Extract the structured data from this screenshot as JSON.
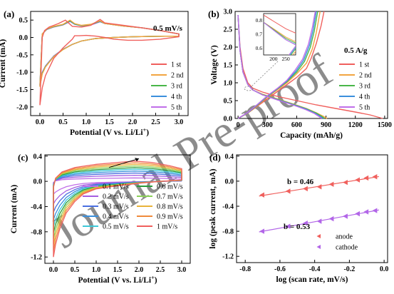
{
  "watermark": "Journal Pre-proof",
  "chart_data": [
    {
      "panel": "(a)",
      "type": "line",
      "title": "",
      "annotation": "0.5 mV/s",
      "xlabel": "Potential (V vs. Li/Li",
      "xlabel_sup": "+",
      "xlabel_end": ")",
      "ylabel": "Current (mA)",
      "xlim": [
        -0.2,
        3.2
      ],
      "ylim": [
        -2.25,
        0.75
      ],
      "xticks": [
        "0.0",
        "0.5",
        "1.0",
        "1.5",
        "2.0",
        "2.5",
        "3.0"
      ],
      "xtick_values": [
        0,
        0.5,
        1,
        1.5,
        2,
        2.5,
        3
      ],
      "yticks": [
        "0.5",
        "0.0",
        "-0.5",
        "-1.0",
        "-1.5",
        "-2.0"
      ],
      "ytick_values": [
        0.5,
        0,
        -0.5,
        -1,
        -1.5,
        -2
      ],
      "legend_position": "bottom-right",
      "series": [
        {
          "name": "1 st",
          "color": "#f0605d",
          "x": [
            0.0,
            0.05,
            0.12,
            0.3,
            0.5,
            0.7,
            0.75,
            0.85,
            1.0,
            1.2,
            1.4,
            1.6,
            1.9,
            2.2,
            2.6,
            3.0,
            3.0,
            2.6,
            2.2,
            1.8,
            1.4,
            1.3,
            1.1,
            0.9,
            0.7,
            0.55,
            0.4,
            0.3,
            0.2,
            0.1,
            0.05,
            0.0
          ],
          "y": [
            -1.95,
            -1.45,
            -1.1,
            -0.6,
            -0.3,
            -0.05,
            0.05,
            0.05,
            0.06,
            0.04,
            0.0,
            -0.05,
            -0.08,
            -0.08,
            -0.05,
            0.02,
            0.1,
            0.2,
            0.28,
            0.35,
            0.42,
            0.52,
            0.35,
            0.3,
            0.32,
            0.5,
            0.4,
            0.35,
            0.3,
            0.2,
            0.0,
            -1.95
          ]
        },
        {
          "name": "2 nd",
          "color": "#f2a541",
          "x": [
            0.0,
            0.05,
            0.12,
            0.3,
            0.5,
            0.7,
            0.9,
            1.2,
            1.6,
            2.0,
            2.4,
            3.0,
            3.0,
            2.6,
            2.2,
            1.8,
            1.4,
            1.3,
            1.1,
            0.9,
            0.75,
            0.65,
            0.5,
            0.3,
            0.15,
            0.05,
            0.0
          ],
          "y": [
            -1.42,
            -1.05,
            -0.85,
            -0.55,
            -0.35,
            -0.2,
            -0.1,
            -0.03,
            0.0,
            0.02,
            0.03,
            0.04,
            0.1,
            0.2,
            0.28,
            0.33,
            0.4,
            0.48,
            0.38,
            0.35,
            0.4,
            0.5,
            0.38,
            0.32,
            0.25,
            0.1,
            -1.42
          ]
        },
        {
          "name": "3 rd",
          "color": "#49b749",
          "x": [
            0.0,
            0.05,
            0.12,
            0.3,
            0.5,
            0.7,
            0.9,
            1.2,
            1.6,
            2.0,
            2.4,
            3.0,
            3.0,
            2.6,
            2.2,
            1.8,
            1.4,
            1.3,
            1.1,
            0.9,
            0.75,
            0.65,
            0.5,
            0.3,
            0.15,
            0.05,
            0.0
          ],
          "y": [
            -1.4,
            -1.03,
            -0.84,
            -0.55,
            -0.35,
            -0.2,
            -0.1,
            -0.03,
            0.0,
            0.02,
            0.03,
            0.04,
            0.1,
            0.2,
            0.28,
            0.33,
            0.4,
            0.47,
            0.37,
            0.34,
            0.39,
            0.48,
            0.37,
            0.31,
            0.24,
            0.1,
            -1.4
          ]
        },
        {
          "name": "4 th",
          "color": "#3b8fdc",
          "x": [
            0.0,
            0.05,
            0.12,
            0.3,
            0.5,
            0.7,
            0.9,
            1.2,
            1.6,
            2.0,
            2.4,
            3.0,
            3.0,
            2.6,
            2.2,
            1.8,
            1.4,
            1.3,
            1.1,
            0.9,
            0.75,
            0.65,
            0.5,
            0.3,
            0.15,
            0.05,
            0.0
          ],
          "y": [
            -1.38,
            -1.02,
            -0.83,
            -0.54,
            -0.34,
            -0.2,
            -0.1,
            -0.03,
            0.0,
            0.02,
            0.03,
            0.04,
            0.1,
            0.2,
            0.28,
            0.33,
            0.4,
            0.46,
            0.37,
            0.34,
            0.38,
            0.47,
            0.37,
            0.31,
            0.24,
            0.1,
            -1.38
          ]
        },
        {
          "name": "5 th",
          "color": "#c06ee8",
          "x": [
            0.0,
            0.05,
            0.12,
            0.3,
            0.5,
            0.7,
            0.9,
            1.2,
            1.6,
            2.0,
            2.4,
            3.0,
            3.0,
            2.6,
            2.2,
            1.8,
            1.4,
            1.3,
            1.1,
            0.9,
            0.75,
            0.65,
            0.5,
            0.3,
            0.15,
            0.05,
            0.0
          ],
          "y": [
            -1.36,
            -1.0,
            -0.82,
            -0.53,
            -0.34,
            -0.2,
            -0.1,
            -0.03,
            0.0,
            0.02,
            0.03,
            0.04,
            0.1,
            0.2,
            0.28,
            0.33,
            0.4,
            0.45,
            0.36,
            0.33,
            0.38,
            0.46,
            0.36,
            0.3,
            0.23,
            0.1,
            -1.36
          ]
        }
      ]
    },
    {
      "panel": "(b)",
      "type": "line",
      "annotation": "0.5 A/g",
      "xlabel": "Capacity (mAh/g)",
      "ylabel": "Voltage (V)",
      "xlim": [
        -30,
        1530
      ],
      "ylim": [
        0,
        3.0
      ],
      "xticks": [
        "0",
        "300",
        "600",
        "900",
        "1200",
        "1500"
      ],
      "xtick_values": [
        0,
        300,
        600,
        900,
        1200,
        1500
      ],
      "yticks": [
        "0.0",
        "0.5",
        "1.0",
        "1.5",
        "2.0",
        "2.5",
        "3.0"
      ],
      "ytick_values": [
        0,
        0.5,
        1,
        1.5,
        2,
        2.5,
        3
      ],
      "legend_position": "bottom-right",
      "inset": {
        "xlim": [
          160,
          290
        ],
        "ylim": [
          0.55,
          0.85
        ],
        "xticks": [
          "200",
          "250"
        ],
        "xtick_values": [
          200,
          250
        ],
        "yticks": [
          "0.8",
          "0.7",
          "0.6"
        ],
        "ytick_values": [
          0.8,
          0.7,
          0.6
        ]
      },
      "series": [
        {
          "name": "1 st",
          "color": "#f0605d",
          "discharge": {
            "x": [
              0,
              20,
              50,
              100,
              150,
              250,
              400,
              600,
              800,
              1000,
              1200,
              1350,
              1440,
              1480
            ],
            "y": [
              2.9,
              2.0,
              1.4,
              1.0,
              0.85,
              0.74,
              0.62,
              0.5,
              0.38,
              0.28,
              0.18,
              0.1,
              0.03,
              0.0
            ]
          },
          "charge": {
            "x": [
              0,
              100,
              200,
              300,
              400,
              500,
              600,
              700,
              750,
              800,
              850,
              880
            ],
            "y": [
              0.0,
              0.15,
              0.35,
              0.55,
              0.75,
              0.95,
              1.15,
              1.4,
              1.7,
              2.1,
              2.6,
              3.0
            ]
          }
        },
        {
          "name": "2 nd",
          "color": "#f2a541",
          "discharge": {
            "x": [
              0,
              20,
              50,
              100,
              150,
              250,
              400,
              550,
              700,
              800,
              880,
              910
            ],
            "y": [
              2.9,
              1.9,
              1.3,
              0.95,
              0.8,
              0.68,
              0.55,
              0.42,
              0.28,
              0.16,
              0.05,
              0.0
            ]
          },
          "charge": {
            "x": [
              0,
              100,
              200,
              300,
              400,
              500,
              600,
              700,
              760,
              800,
              840
            ],
            "y": [
              0.0,
              0.15,
              0.37,
              0.6,
              0.8,
              1.0,
              1.25,
              1.55,
              1.95,
              2.4,
              3.0
            ]
          }
        },
        {
          "name": "3 rd",
          "color": "#49b749",
          "discharge": {
            "x": [
              0,
              20,
              50,
              100,
              150,
              250,
              400,
              550,
              700,
              800,
              860,
              885
            ],
            "y": [
              2.9,
              1.9,
              1.3,
              0.95,
              0.8,
              0.67,
              0.54,
              0.41,
              0.27,
              0.15,
              0.05,
              0.0
            ]
          },
          "charge": {
            "x": [
              0,
              100,
              200,
              300,
              400,
              500,
              600,
              680,
              740,
              780,
              815
            ],
            "y": [
              0.0,
              0.16,
              0.38,
              0.62,
              0.82,
              1.03,
              1.3,
              1.6,
              2.0,
              2.45,
              3.0
            ]
          }
        },
        {
          "name": "4 th",
          "color": "#3b8fdc",
          "discharge": {
            "x": [
              0,
              20,
              50,
              100,
              150,
              250,
              400,
              550,
              700,
              790,
              845,
              870
            ],
            "y": [
              2.9,
              1.9,
              1.3,
              0.95,
              0.8,
              0.66,
              0.53,
              0.4,
              0.26,
              0.14,
              0.05,
              0.0
            ]
          },
          "charge": {
            "x": [
              0,
              100,
              200,
              300,
              400,
              500,
              590,
              670,
              730,
              770,
              800
            ],
            "y": [
              0.0,
              0.16,
              0.39,
              0.63,
              0.83,
              1.05,
              1.32,
              1.63,
              2.05,
              2.5,
              3.0
            ]
          }
        },
        {
          "name": "5 th",
          "color": "#c06ee8",
          "discharge": {
            "x": [
              0,
              20,
              50,
              100,
              150,
              250,
              400,
              550,
              690,
              780,
              830,
              855
            ],
            "y": [
              2.9,
              1.9,
              1.3,
              0.95,
              0.8,
              0.66,
              0.52,
              0.39,
              0.25,
              0.14,
              0.05,
              0.0
            ]
          },
          "charge": {
            "x": [
              0,
              100,
              200,
              300,
              400,
              500,
              580,
              660,
              720,
              760,
              790
            ],
            "y": [
              0.0,
              0.17,
              0.4,
              0.64,
              0.84,
              1.07,
              1.34,
              1.66,
              2.08,
              2.55,
              3.0
            ]
          }
        }
      ]
    },
    {
      "panel": "(c)",
      "type": "line",
      "xlabel": "Potential (V vs. Li/Li",
      "xlabel_sup": "+",
      "xlabel_end": ")",
      "ylabel": "Current (mA)",
      "xlim": [
        -0.2,
        3.2
      ],
      "ylim": [
        -1.3,
        0.42
      ],
      "xticks": [
        "0.0",
        "0.5",
        "1.0",
        "1.5",
        "2.0",
        "2.5",
        "3.0"
      ],
      "xtick_values": [
        0,
        0.5,
        1,
        1.5,
        2,
        2.5,
        3
      ],
      "yticks": [
        "0.4",
        "0.0",
        "-0.4",
        "-0.8",
        "-1.2"
      ],
      "ytick_values": [
        0.4,
        0,
        -0.4,
        -0.8,
        -1.2
      ],
      "legend_position": "bottom-center, two columns",
      "series": [
        {
          "name": "0.1 mV/s",
          "color": "#c06ee8",
          "scale": 0.17
        },
        {
          "name": "0.2 mV/s",
          "color": "#a55ee0",
          "scale": 0.3
        },
        {
          "name": "0.3 mV/s",
          "color": "#4a6fe0",
          "scale": 0.41
        },
        {
          "name": "0.4 mV/s",
          "color": "#3b8fdc",
          "scale": 0.51
        },
        {
          "name": "0.5 mV/s",
          "color": "#3ec8d8",
          "scale": 0.6
        },
        {
          "name": "0.6 mV/s",
          "color": "#2c9a3c",
          "scale": 0.68
        },
        {
          "name": "0.7 mV/s",
          "color": "#8bd058",
          "scale": 0.76
        },
        {
          "name": "0.8 mV/s",
          "color": "#e8b33a",
          "scale": 0.84
        },
        {
          "name": "0.9 mV/s",
          "color": "#f08a3c",
          "scale": 0.92
        },
        {
          "name": "1 mV/s",
          "color": "#f0605d",
          "scale": 1.0
        }
      ]
    },
    {
      "panel": "(d)",
      "type": "scatter",
      "xlabel": "log (scan rate, mV/s)",
      "ylabel": "log (peak current, mA)",
      "xlim": [
        -0.85,
        0.02
      ],
      "ylim": [
        -1.3,
        0.42
      ],
      "xticks": [
        "-0.8",
        "-0.6",
        "-0.4",
        "-0.2",
        "0.0"
      ],
      "xtick_values": [
        -0.8,
        -0.6,
        -0.4,
        -0.2,
        0.0
      ],
      "yticks": [
        "0.4",
        "0.0",
        "-0.4",
        "-0.8",
        "-1.2"
      ],
      "ytick_values": [
        0.4,
        0,
        -0.4,
        -0.8,
        -1.2
      ],
      "legend_position": "bottom-right",
      "annotations": [
        {
          "text": "b = 0.46",
          "color": "#f0605d"
        },
        {
          "text": "b = 0.53",
          "color": "#a55ee0"
        }
      ],
      "series": [
        {
          "name": "anode",
          "color": "#f0605d",
          "x": [
            -0.7,
            -0.55,
            -0.45,
            -0.37,
            -0.3,
            -0.22,
            -0.15,
            -0.1,
            -0.05
          ],
          "y": [
            -0.22,
            -0.16,
            -0.12,
            -0.09,
            -0.05,
            -0.02,
            0.02,
            0.05,
            0.07
          ]
        },
        {
          "name": "cathode",
          "color": "#b266e8",
          "x": [
            -0.7,
            -0.55,
            -0.45,
            -0.37,
            -0.3,
            -0.22,
            -0.15,
            -0.1,
            -0.05
          ],
          "y": [
            -0.8,
            -0.72,
            -0.67,
            -0.64,
            -0.6,
            -0.56,
            -0.52,
            -0.49,
            -0.47
          ]
        }
      ]
    }
  ]
}
